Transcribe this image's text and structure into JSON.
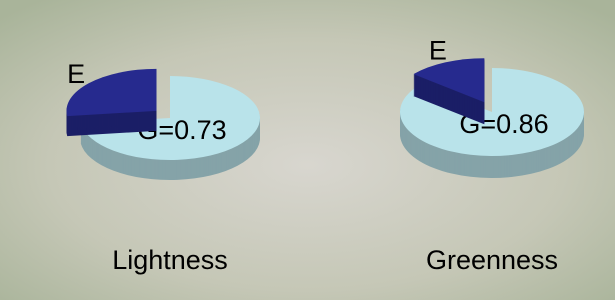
{
  "chart_data": [
    {
      "type": "pie",
      "title": "Lightness",
      "values": [
        0.73,
        0.27
      ],
      "value_labels": [
        "G=0.73",
        "E"
      ],
      "colors": [
        "#b9e3ea",
        "#262a8e"
      ]
    },
    {
      "type": "pie",
      "title": "Greenness",
      "values": [
        0.86,
        0.14
      ],
      "value_labels": [
        "G=0.86",
        "E"
      ],
      "colors": [
        "#b9e3ea",
        "#262a8e"
      ]
    }
  ]
}
